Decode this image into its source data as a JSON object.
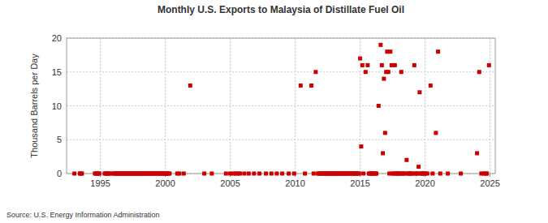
{
  "chart_data": {
    "type": "scatter",
    "title": "Monthly U.S. Exports to Malaysia of Distillate Fuel Oil",
    "y_label": "Thousand Barrels per Day",
    "source": "Source: U.S. Energy Information Administration",
    "color": "#cc0000",
    "marker": "square",
    "grid": true,
    "xlim": [
      1992.4,
      2025.4
    ],
    "xticks": [
      1995,
      2000,
      2005,
      2010,
      2015,
      2020,
      2025
    ],
    "ylim": [
      0,
      20
    ],
    "yticks": [
      0,
      5,
      10,
      15,
      20
    ],
    "x": [
      1993.0,
      1993.42,
      1993.5,
      1993.58,
      1994.58,
      1994.67,
      1994.75,
      1994.83,
      1994.92,
      1995.33,
      1995.42,
      1995.5,
      1995.58,
      1995.67,
      1995.75,
      1996.0,
      1996.08,
      1996.17,
      1996.25,
      1996.33,
      1996.42,
      1996.5,
      1996.58,
      1996.67,
      1996.75,
      1996.83,
      1996.92,
      1997.0,
      1997.08,
      1997.17,
      1997.25,
      1997.33,
      1997.42,
      1997.5,
      1997.58,
      1997.67,
      1997.75,
      1997.83,
      1997.92,
      1998.0,
      1998.08,
      1998.17,
      1998.25,
      1998.33,
      1998.42,
      1998.5,
      1998.58,
      1998.67,
      1998.75,
      1998.83,
      1998.92,
      1999.0,
      1999.08,
      1999.17,
      1999.25,
      1999.33,
      1999.42,
      1999.5,
      1999.58,
      1999.67,
      1999.75,
      1999.83,
      1999.92,
      2000.0,
      2000.08,
      2000.17,
      2000.25,
      2000.33,
      2000.92,
      2001.08,
      2001.42,
      2001.92,
      2003.0,
      2003.58,
      2004.67,
      2005.0,
      2005.25,
      2005.42,
      2005.58,
      2005.75,
      2006.08,
      2006.42,
      2006.83,
      2007.25,
      2007.75,
      2008.17,
      2008.58,
      2009.0,
      2009.5,
      2009.92,
      2010.42,
      2010.75,
      2011.25,
      2011.42,
      2011.58,
      2011.75,
      2011.83,
      2011.92,
      2012.0,
      2012.08,
      2012.17,
      2012.25,
      2012.33,
      2012.42,
      2012.5,
      2012.58,
      2012.67,
      2012.75,
      2012.83,
      2012.92,
      2013.0,
      2013.08,
      2013.17,
      2013.25,
      2013.33,
      2013.42,
      2013.5,
      2013.58,
      2013.67,
      2013.75,
      2013.83,
      2013.92,
      2014.0,
      2014.08,
      2014.17,
      2014.25,
      2014.33,
      2014.42,
      2014.5,
      2014.58,
      2014.67,
      2014.75,
      2014.83,
      2014.92,
      2015.0,
      2015.08,
      2015.17,
      2015.25,
      2015.42,
      2015.58,
      2015.67,
      2015.75,
      2015.83,
      2015.92,
      2016.0,
      2016.08,
      2016.17,
      2016.25,
      2016.42,
      2016.58,
      2016.67,
      2016.75,
      2016.83,
      2016.92,
      2017.0,
      2017.08,
      2017.17,
      2017.25,
      2017.33,
      2017.42,
      2017.5,
      2017.58,
      2017.67,
      2017.75,
      2017.83,
      2017.92,
      2018.0,
      2018.08,
      2018.17,
      2018.25,
      2018.33,
      2018.42,
      2018.58,
      2018.67,
      2018.75,
      2018.83,
      2018.92,
      2019.0,
      2019.17,
      2019.25,
      2019.33,
      2019.42,
      2019.5,
      2019.58,
      2019.67,
      2019.75,
      2019.83,
      2019.92,
      2020.0,
      2020.17,
      2020.42,
      2020.58,
      2020.83,
      2021.0,
      2021.17,
      2021.75,
      2022.75,
      2024.0,
      2024.17,
      2024.33,
      2024.5,
      2024.67,
      2024.75,
      2024.92
    ],
    "values": [
      0,
      0,
      0,
      0,
      0,
      0,
      0,
      0,
      0,
      0,
      0,
      0,
      0,
      0,
      0,
      0,
      0,
      0,
      0,
      0,
      0,
      0,
      0,
      0,
      0,
      0,
      0,
      0,
      0,
      0,
      0,
      0,
      0,
      0,
      0,
      0,
      0,
      0,
      0,
      0,
      0,
      0,
      0,
      0,
      0,
      0,
      0,
      0,
      0,
      0,
      0,
      0,
      0,
      0,
      0,
      0,
      0,
      0,
      0,
      0,
      0,
      0,
      0,
      0,
      0,
      0,
      0,
      0,
      0,
      0,
      0,
      13,
      0,
      0,
      0,
      0,
      0,
      0,
      0,
      0,
      0,
      0,
      0,
      0,
      0,
      0,
      0,
      0,
      0,
      0,
      13,
      0,
      13,
      0,
      15,
      0,
      0,
      0,
      0,
      0,
      0,
      0,
      0,
      0,
      0,
      0,
      0,
      0,
      0,
      0,
      0,
      0,
      0,
      0,
      0,
      0,
      0,
      0,
      0,
      0,
      0,
      0,
      0,
      0,
      0,
      0,
      0,
      0,
      0,
      0,
      0,
      0,
      0,
      0,
      17,
      4,
      16,
      0,
      15,
      16,
      0,
      0,
      0,
      0,
      0,
      0,
      0,
      0,
      10,
      19,
      16,
      3,
      14,
      6,
      15,
      18,
      15,
      0,
      18,
      16,
      0,
      0,
      16,
      0,
      0,
      0,
      0,
      0,
      15,
      0,
      0,
      0,
      2,
      0,
      0,
      0,
      0,
      0,
      16,
      0,
      0,
      0,
      1,
      12,
      0,
      0,
      0,
      0,
      0,
      0,
      13,
      0,
      6,
      18,
      0,
      0,
      0,
      3,
      15,
      0,
      0,
      0,
      0,
      16
    ]
  }
}
